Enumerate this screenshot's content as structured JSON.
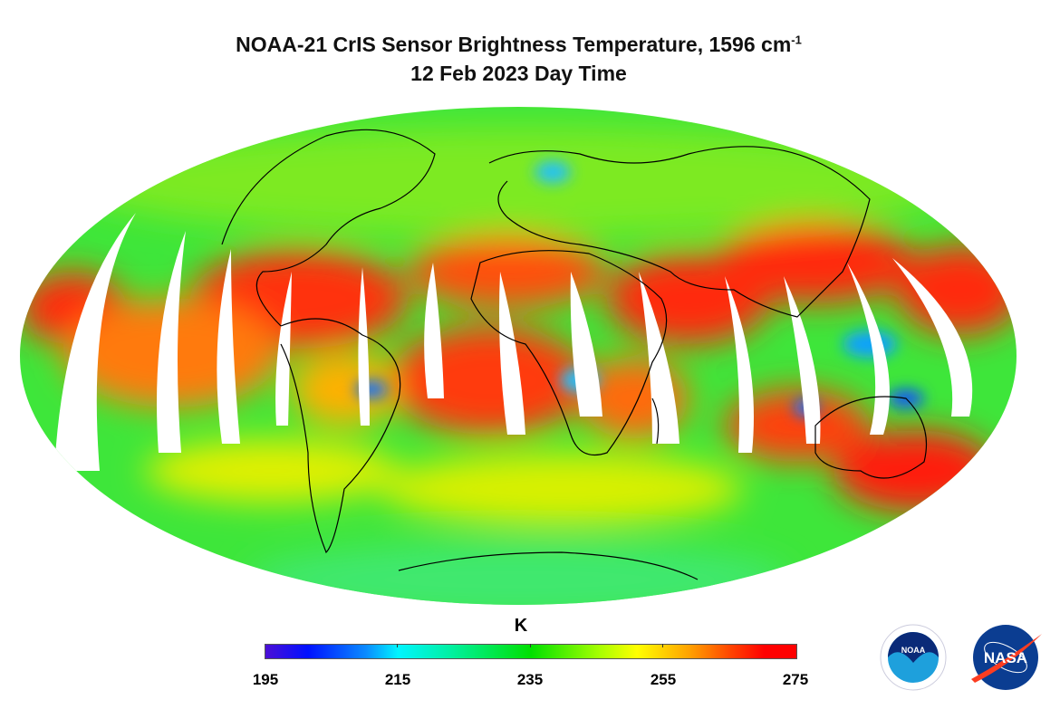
{
  "title": {
    "line1": "NOAA-21 CrIS Sensor Brightness Temperature, 1596 cm",
    "superscript": "-1",
    "line2": "12 Feb 2023 Day Time"
  },
  "colorbar": {
    "unit": "K",
    "min": 195,
    "max": 275,
    "ticks": [
      "195",
      "215",
      "235",
      "255",
      "275"
    ],
    "colormap": [
      "#4b0fd6",
      "#0011ff",
      "#00f5ff",
      "#00e000",
      "#ffff00",
      "#ff8000",
      "#ff0000"
    ]
  },
  "map": {
    "projection": "mollweide",
    "missing_data_color": "#ffffff",
    "coastline_color": "#000000"
  },
  "logos": {
    "noaa": "NOAA",
    "nasa": "NASA"
  }
}
